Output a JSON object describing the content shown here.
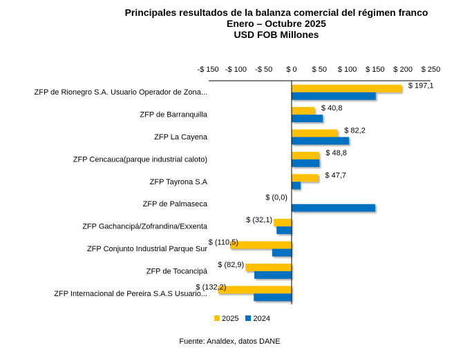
{
  "chart_data": {
    "type": "bar",
    "orientation": "horizontal",
    "title": "Principales resultados de la balanza comercial del régimen franco",
    "subtitle": "Enero – Octubre 2025",
    "unit_label": "USD FOB Millones",
    "xlim": [
      -150,
      250
    ],
    "ticks": [
      -150,
      -100,
      -50,
      0,
      50,
      100,
      150,
      200,
      250
    ],
    "tick_labels": [
      "-$ 150",
      "-$ 100",
      "-$ 50",
      "$ 0",
      "$ 50",
      "$ 100",
      "$ 150",
      "$ 200",
      "$ 250"
    ],
    "categories": [
      "ZFP de Rionegro S.A. Usuario Operador de Zona...",
      "ZFP de Barranquilla",
      "ZFP La Cayena",
      "ZFP Cencauca(parque industrial caloto)",
      "ZFP Tayrona S.A",
      "ZFP de Palmaseca",
      "ZFP Gachancipá/Zofrandina/Exxenta",
      "ZFP Conjunto Industrial Parque Sur",
      "ZFP de Tocancipá",
      "ZFP Internacional de Pereira S.A.S Usuario..."
    ],
    "series": [
      {
        "name": "2025",
        "color": "#FFC000",
        "values": [
          197.1,
          40.8,
          82.2,
          48.8,
          47.7,
          0.0,
          -32.1,
          -110.5,
          -82.9,
          -132.2
        ],
        "labels": [
          "$ 197,1",
          "$ 40,8",
          "$ 82,2",
          "$ 48,8",
          "$ 47,7",
          "$ (0,0)",
          "$ (32,1)",
          "$ (110,5)",
          "$ (82,9)",
          "$ (132,2)"
        ]
      },
      {
        "name": "2024",
        "color": "#0070C0",
        "values": [
          151,
          56,
          103,
          50,
          16,
          150,
          -27,
          -35,
          -67,
          -68
        ]
      }
    ],
    "legend": "bottom",
    "grid": false,
    "source": "Fuente: Analdex, datos DANE"
  }
}
